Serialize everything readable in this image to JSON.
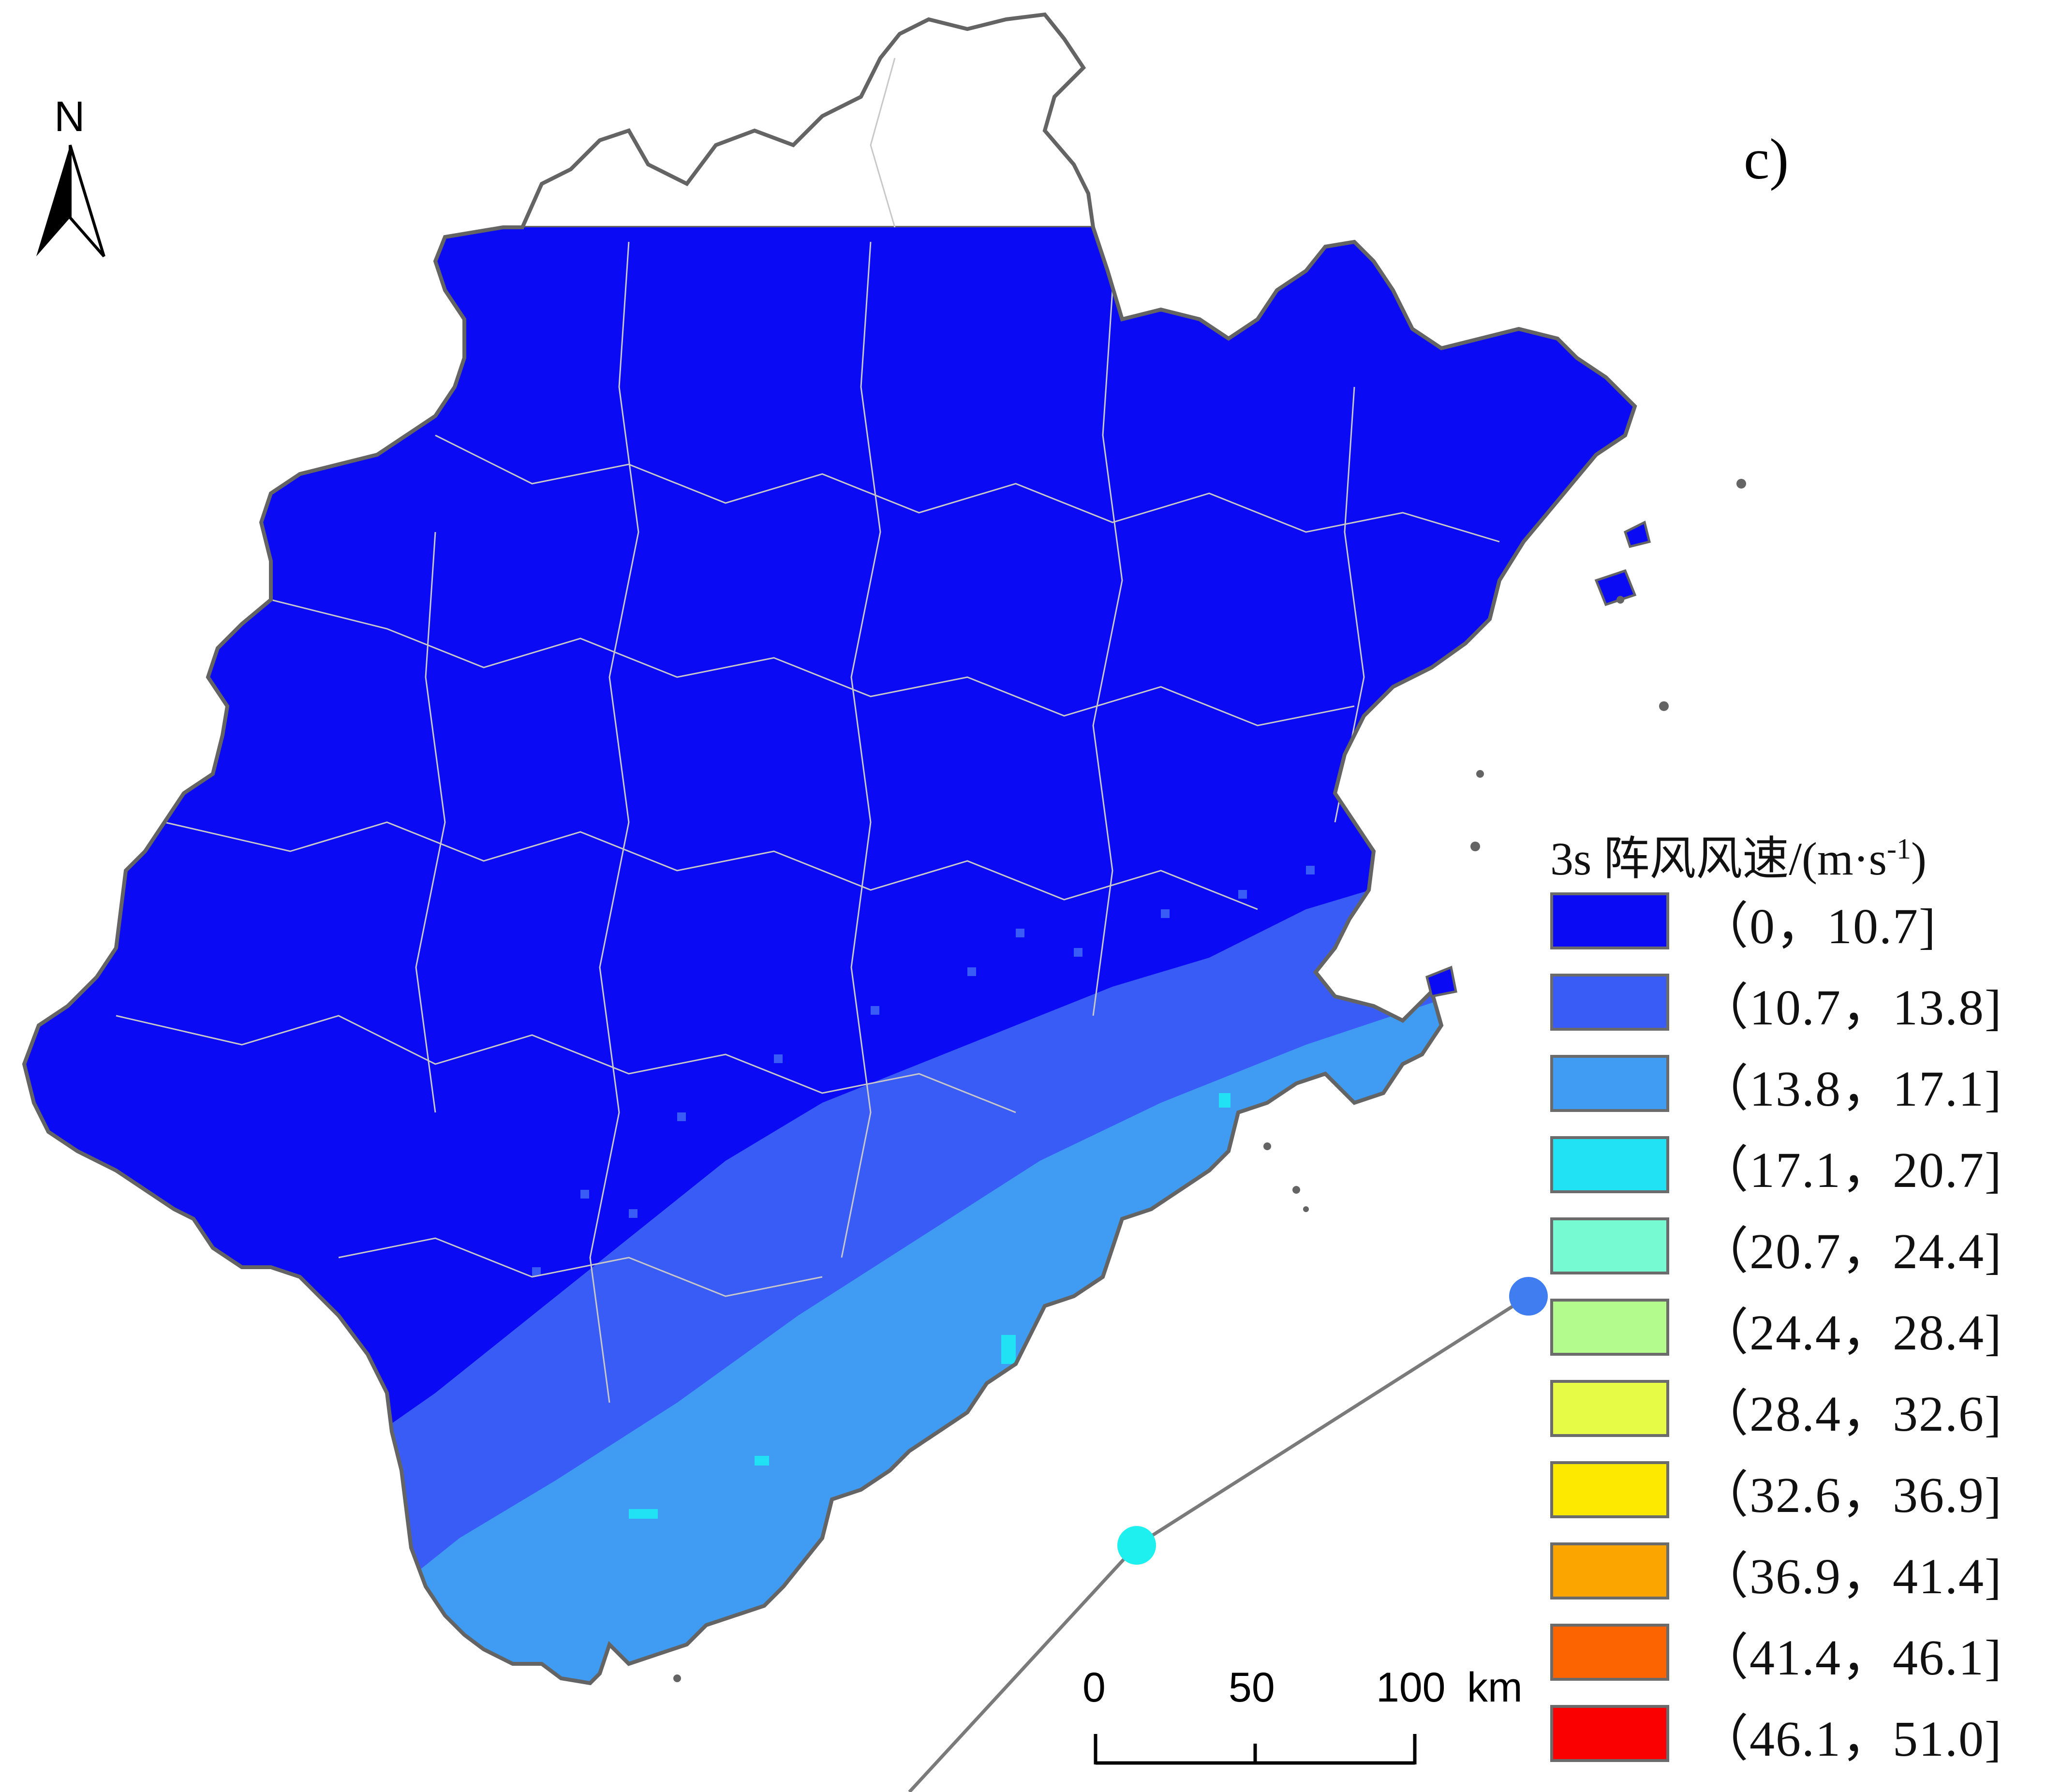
{
  "panel_label": "c)",
  "north_arrow": {
    "label": "N",
    "icon": "north-arrow-icon"
  },
  "legend": {
    "title_main": "3s 阵风风速/(m·s",
    "title_sup": "-1",
    "title_end": ")",
    "items": [
      {
        "range": "（0，10.7]",
        "color": "#0a0af5"
      },
      {
        "range": "（10.7，13.8]",
        "color": "#3a5cf6"
      },
      {
        "range": "（13.8，17.1]",
        "color": "#3f9cf2"
      },
      {
        "range": "（17.1，20.7]",
        "color": "#21e2f5"
      },
      {
        "range": "（20.7，24.4]",
        "color": "#76fad2"
      },
      {
        "range": "（24.4，28.4]",
        "color": "#b4fb8e"
      },
      {
        "range": "（28.4，32.6]",
        "color": "#e5fb45"
      },
      {
        "range": "（32.6，36.9]",
        "color": "#fde900"
      },
      {
        "range": "（36.9，41.4]",
        "color": "#fba600"
      },
      {
        "range": "（41.4，46.1]",
        "color": "#fb6400"
      },
      {
        "range": "（46.1，51.0]",
        "color": "#fb0000"
      }
    ]
  },
  "scale_bar": {
    "ticks": [
      "0",
      "50",
      "100"
    ],
    "unit": "km"
  },
  "colors": {
    "province_outline": "#646464",
    "county_boundary": "#c8c8c8",
    "track_line": "#7a7a7a",
    "track_point_1": "#3f7df0",
    "track_point_2": "#1ef0f0"
  }
}
